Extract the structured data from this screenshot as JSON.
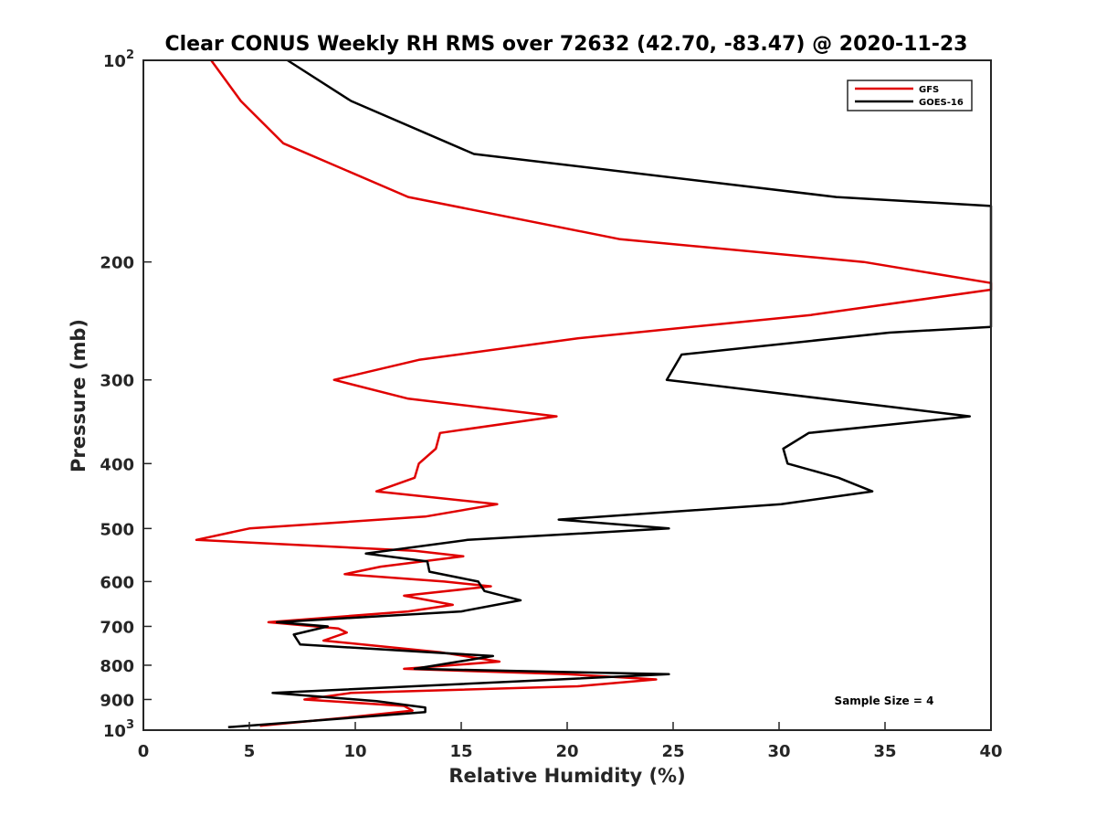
{
  "chart_data": {
    "type": "line",
    "title": "Clear CONUS Weekly RH RMS over 72632 (42.70, -83.47) @ 2020-11-23",
    "xlabel": "Relative Humidity (%)",
    "ylabel": "Pressure (mb)",
    "xlim": [
      0,
      40
    ],
    "ylim": [
      1000,
      100
    ],
    "yscale": "log",
    "y_reversed": true,
    "grid": false,
    "legend_position": "top-right",
    "x_ticks": [
      "0",
      "5",
      "10",
      "15",
      "20",
      "25",
      "30",
      "35",
      "40"
    ],
    "x_tick_values": [
      0,
      5,
      10,
      15,
      20,
      25,
      30,
      35,
      40
    ],
    "y_ticks": [
      {
        "value": 100,
        "base": "10",
        "exp": "2"
      },
      {
        "value": 200,
        "label": "200"
      },
      {
        "value": 300,
        "label": "300"
      },
      {
        "value": 400,
        "label": "400"
      },
      {
        "value": 500,
        "label": "500"
      },
      {
        "value": 600,
        "label": "600"
      },
      {
        "value": 700,
        "label": "700"
      },
      {
        "value": 800,
        "label": "800"
      },
      {
        "value": 900,
        "label": "900"
      },
      {
        "value": 1000,
        "base": "10",
        "exp": "3"
      }
    ],
    "annotation": "Sample Size = 4",
    "series": [
      {
        "name": "GFS",
        "color": "#e00000",
        "points": [
          [
            3.2,
            100
          ],
          [
            4.6,
            115
          ],
          [
            6.6,
            133
          ],
          [
            12.5,
            160
          ],
          [
            22.5,
            185
          ],
          [
            34,
            200
          ],
          [
            40,
            215
          ],
          [
            40,
            220
          ],
          [
            31.5,
            240
          ],
          [
            20.5,
            260
          ],
          [
            13,
            280
          ],
          [
            9,
            300
          ],
          [
            12.5,
            320
          ],
          [
            19.5,
            340
          ],
          [
            14,
            360
          ],
          [
            13.8,
            380
          ],
          [
            13,
            400
          ],
          [
            12.8,
            420
          ],
          [
            11,
            440
          ],
          [
            16.7,
            460
          ],
          [
            13.3,
            480
          ],
          [
            5,
            500
          ],
          [
            2.5,
            520
          ],
          [
            12.8,
            540
          ],
          [
            15.1,
            550
          ],
          [
            11.2,
            570
          ],
          [
            9.5,
            585
          ],
          [
            14.2,
            600
          ],
          [
            16.4,
            610
          ],
          [
            12.3,
            630
          ],
          [
            14.6,
            650
          ],
          [
            12.5,
            665
          ],
          [
            5.9,
            690
          ],
          [
            9.2,
            705
          ],
          [
            9.6,
            715
          ],
          [
            8.5,
            735
          ],
          [
            14,
            765
          ],
          [
            16.8,
            790
          ],
          [
            12.3,
            810
          ],
          [
            20,
            825
          ],
          [
            24.2,
            840
          ],
          [
            20.5,
            860
          ],
          [
            9.8,
            880
          ],
          [
            7.6,
            900
          ],
          [
            12.3,
            920
          ],
          [
            12.7,
            935
          ],
          [
            10,
            955
          ],
          [
            5.5,
            985
          ]
        ]
      },
      {
        "name": "GOES-16",
        "color": "#000000",
        "points": [
          [
            6.8,
            100
          ],
          [
            9.8,
            115
          ],
          [
            15.6,
            138
          ],
          [
            32.7,
            160
          ],
          [
            40,
            165
          ],
          [
            40,
            250
          ],
          [
            35.2,
            255
          ],
          [
            25.4,
            275
          ],
          [
            24.7,
            300
          ],
          [
            39,
            340
          ],
          [
            31.4,
            360
          ],
          [
            30.2,
            380
          ],
          [
            30.4,
            400
          ],
          [
            32.8,
            420
          ],
          [
            34.4,
            440
          ],
          [
            30.1,
            460
          ],
          [
            19.6,
            485
          ],
          [
            24.8,
            500
          ],
          [
            15.3,
            520
          ],
          [
            10.5,
            545
          ],
          [
            13.4,
            560
          ],
          [
            13.5,
            580
          ],
          [
            15.8,
            600
          ],
          [
            16.1,
            620
          ],
          [
            17.8,
            640
          ],
          [
            15,
            665
          ],
          [
            6.3,
            690
          ],
          [
            8.7,
            700
          ],
          [
            7.1,
            720
          ],
          [
            7.4,
            745
          ],
          [
            16.5,
            775
          ],
          [
            12.8,
            810
          ],
          [
            24.8,
            825
          ],
          [
            6.1,
            880
          ],
          [
            11,
            905
          ],
          [
            13.3,
            925
          ],
          [
            13.3,
            940
          ],
          [
            4,
            990
          ]
        ]
      }
    ]
  }
}
